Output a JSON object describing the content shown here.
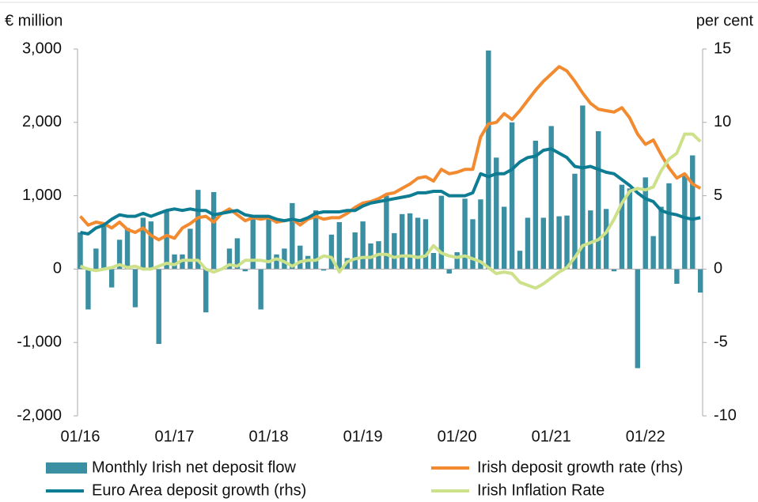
{
  "chart_data": {
    "type": "bar-line",
    "y_label": "€ million",
    "y2_label": "per cent",
    "categories": [
      "01/16",
      null,
      null,
      null,
      null,
      null,
      null,
      null,
      null,
      null,
      null,
      null,
      "01/17",
      null,
      null,
      null,
      null,
      null,
      null,
      null,
      null,
      null,
      null,
      null,
      "01/18",
      null,
      null,
      null,
      null,
      null,
      null,
      null,
      null,
      null,
      null,
      null,
      "01/19",
      null,
      null,
      null,
      null,
      null,
      null,
      null,
      null,
      null,
      null,
      null,
      "01/20",
      null,
      null,
      null,
      null,
      null,
      null,
      null,
      null,
      null,
      null,
      null,
      "01/21",
      null,
      null,
      null,
      null,
      null,
      null,
      null,
      null,
      null,
      null,
      null,
      "01/22",
      null,
      null,
      null,
      null,
      null,
      null,
      null
    ],
    "ylim": [
      -2000,
      3000
    ],
    "yticks": [
      {
        "value": 3000,
        "label": "3,000"
      },
      {
        "value": 2000,
        "label": "2,000"
      },
      {
        "value": 1000,
        "label": "1,000"
      },
      0,
      {
        "value": -1000,
        "label": "-1,000"
      },
      {
        "value": -2000,
        "label": "-2,000"
      }
    ],
    "y2lim": [
      -10,
      15
    ],
    "y2ticks": [
      15,
      10,
      5,
      0,
      -5,
      -10
    ],
    "series": [
      {
        "name": "Monthly Irish net deposit flow",
        "type": "bar",
        "color": "#3a8fa3",
        "values": [
          500,
          -550,
          280,
          620,
          -250,
          400,
          560,
          -520,
          700,
          650,
          -1020,
          800,
          200,
          200,
          550,
          1080,
          -590,
          1050,
          0,
          280,
          420,
          -30,
          720,
          -550,
          700,
          200,
          280,
          900,
          320,
          180,
          800,
          -20,
          470,
          640,
          150,
          500,
          650,
          350,
          380,
          1000,
          490,
          750,
          760,
          700,
          680,
          220,
          1000,
          -60,
          230,
          960,
          680,
          950,
          2980,
          1520,
          850,
          2000,
          250,
          700,
          1750,
          700,
          1950,
          720,
          730,
          1300,
          2230,
          800,
          1880,
          820,
          -30,
          1150,
          1100,
          -1350,
          1250,
          450,
          850,
          1170,
          -200,
          1300,
          1550,
          -320
        ]
      },
      {
        "name": "Irish deposit growth rate (rhs)",
        "type": "line",
        "axis": "y2",
        "color": "#f28a30",
        "values": [
          3.6,
          3.0,
          3.2,
          3.1,
          2.8,
          3.2,
          2.7,
          2.5,
          2.8,
          2.3,
          2.0,
          2.3,
          2.1,
          2.8,
          3.1,
          3.5,
          3.6,
          3.2,
          3.8,
          4.1,
          3.7,
          3.3,
          3.5,
          3.4,
          3.5,
          3.2,
          3.3,
          3.4,
          3.0,
          3.4,
          3.6,
          3.4,
          3.5,
          3.5,
          3.8,
          4.2,
          4.5,
          4.6,
          4.8,
          5.1,
          5.2,
          5.5,
          5.8,
          6.2,
          6.3,
          6.0,
          6.8,
          6.5,
          6.6,
          6.8,
          6.8,
          9.0,
          9.9,
          10.0,
          10.6,
          10.2,
          10.8,
          11.5,
          12.2,
          12.8,
          13.3,
          13.8,
          13.5,
          12.8,
          12.0,
          11.3,
          10.9,
          10.8,
          10.7,
          11.0,
          10.3,
          9.2,
          8.5,
          8.8,
          7.8,
          6.9,
          6.2,
          6.5,
          5.8,
          5.5
        ]
      },
      {
        "name": "Euro Area deposit growth (rhs)",
        "type": "line",
        "axis": "y2",
        "color": "#0e7d93",
        "values": [
          2.5,
          2.4,
          2.8,
          3.0,
          3.4,
          3.7,
          3.6,
          3.6,
          3.8,
          3.6,
          3.8,
          4.0,
          4.1,
          4.0,
          4.1,
          4.0,
          4.0,
          3.7,
          3.8,
          3.9,
          4.0,
          3.7,
          3.6,
          3.6,
          3.6,
          3.4,
          3.3,
          3.4,
          3.3,
          3.5,
          3.8,
          3.9,
          3.9,
          3.9,
          4.0,
          4.0,
          4.3,
          4.5,
          4.6,
          4.7,
          4.8,
          4.9,
          5.0,
          5.2,
          5.2,
          5.3,
          5.3,
          5.0,
          5.0,
          5.0,
          5.2,
          6.5,
          6.3,
          6.5,
          6.5,
          6.8,
          7.3,
          7.6,
          7.7,
          8.1,
          8.2,
          7.9,
          7.6,
          7.0,
          6.9,
          7.0,
          6.8,
          6.6,
          6.5,
          6.1,
          5.7,
          5.2,
          4.8,
          4.6,
          4.0,
          3.8,
          3.7,
          3.5,
          3.4,
          3.5
        ]
      },
      {
        "name": "Irish Inflation Rate",
        "type": "line",
        "axis": "y2",
        "color": "#cde08a",
        "values": [
          0.2,
          0.0,
          -0.1,
          0.0,
          0.1,
          0.3,
          0.1,
          0.2,
          0.0,
          0.0,
          0.2,
          0.4,
          0.3,
          0.6,
          0.6,
          0.6,
          0.0,
          -0.2,
          0.0,
          0.3,
          0.2,
          0.6,
          0.6,
          0.6,
          0.5,
          0.7,
          0.5,
          0.2,
          0.5,
          0.6,
          0.6,
          0.9,
          0.8,
          -0.2,
          0.5,
          0.7,
          0.8,
          0.8,
          1.0,
          1.0,
          0.8,
          0.9,
          0.9,
          0.8,
          0.9,
          1.6,
          1.1,
          0.9,
          0.8,
          0.9,
          0.7,
          0.5,
          0.1,
          -0.3,
          -0.2,
          -0.3,
          -0.9,
          -1.1,
          -1.3,
          -1.0,
          -0.6,
          -0.2,
          0.1,
          0.8,
          1.6,
          1.8,
          2.0,
          2.5,
          3.4,
          4.5,
          5.3,
          5.5,
          5.4,
          5.6,
          6.7,
          7.5,
          7.9,
          9.2,
          9.2,
          8.7
        ]
      }
    ]
  }
}
